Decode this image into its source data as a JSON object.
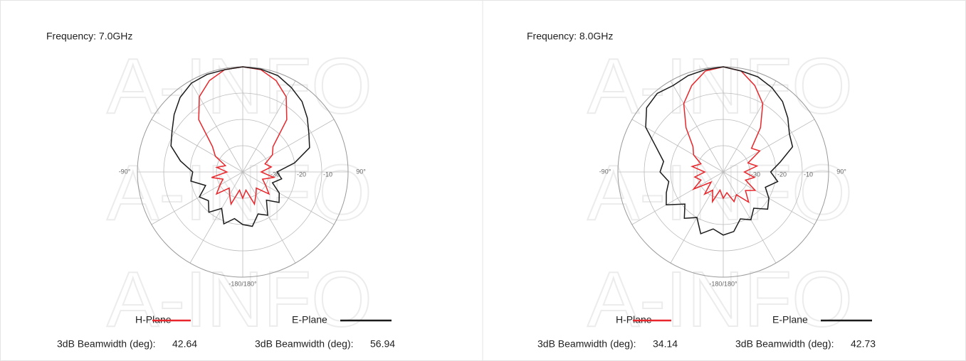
{
  "watermark": "A-INFO",
  "chart_data": [
    {
      "type": "polar",
      "title": "Frequency: 7.0GHz",
      "beamwidth_label": "3dB Beamwidth (deg):",
      "theta": [
        -180,
        -170,
        -160,
        -150,
        -140,
        -130,
        -120,
        -110,
        -100,
        -90,
        -80,
        -70,
        -60,
        -50,
        -40,
        -30,
        -20,
        -10,
        0,
        10,
        20,
        30,
        40,
        50,
        60,
        70,
        80,
        90,
        100,
        110,
        120,
        130,
        140,
        150,
        160,
        170
      ],
      "rlim": [
        -40,
        0
      ],
      "rticks": [
        -30,
        -20,
        -10
      ],
      "thetaticks": [
        {
          "value": -90,
          "label": "-90°"
        },
        {
          "value": 90,
          "label": "90°"
        },
        {
          "value": 180,
          "label": "-180/180°"
        }
      ],
      "series": [
        {
          "name": "H-Plane",
          "color": "#e8262b",
          "beamwidth": 42.64,
          "values": [
            -30,
            -33,
            -27,
            -30,
            -32,
            -27,
            -30,
            -32,
            -28,
            -34,
            -30,
            -33,
            -28,
            -25,
            -14,
            -7,
            -3,
            -0.5,
            0,
            -0.5,
            -3,
            -7,
            -14,
            -25,
            -27,
            -31,
            -29,
            -33,
            -28,
            -32,
            -30,
            -27,
            -32,
            -30,
            -27,
            -33
          ]
        },
        {
          "name": "E-Plane",
          "color": "#1a1a1a",
          "beamwidth": 56.94,
          "values": [
            -20,
            -22,
            -19,
            -24,
            -20,
            -23,
            -21,
            -25,
            -20,
            -21,
            -16,
            -11,
            -9,
            -6,
            -3,
            -1,
            -0.5,
            -0.5,
            0,
            -0.3,
            -1,
            -3,
            -5,
            -8,
            -11,
            -13,
            -20,
            -27,
            -25,
            -28,
            -24,
            -22,
            -26,
            -21,
            -23,
            -19
          ]
        }
      ]
    },
    {
      "type": "polar",
      "title": "Frequency: 8.0GHz",
      "beamwidth_label": "3dB Beamwidth (deg):",
      "theta": [
        -180,
        -170,
        -160,
        -150,
        -140,
        -130,
        -120,
        -110,
        -100,
        -90,
        -80,
        -70,
        -60,
        -50,
        -40,
        -30,
        -20,
        -10,
        0,
        10,
        20,
        30,
        40,
        50,
        60,
        70,
        80,
        90,
        100,
        110,
        120,
        130,
        140,
        150,
        160,
        170
      ],
      "rlim": [
        -40,
        0
      ],
      "rticks": [
        -30,
        -20,
        -10
      ],
      "thetaticks": [
        {
          "value": -90,
          "label": "-90°"
        },
        {
          "value": 90,
          "label": "90°"
        },
        {
          "value": 180,
          "label": "-180/180°"
        }
      ],
      "series": [
        {
          "name": "H-Plane",
          "color": "#e8262b",
          "beamwidth": 34.14,
          "values": [
            -30,
            -33,
            -28,
            -32,
            -29,
            -34,
            -27,
            -31,
            -29,
            -33,
            -28,
            -31,
            -27,
            -25,
            -18,
            -10,
            -5,
            -1,
            0,
            -1,
            -5,
            -10,
            -18,
            -26,
            -24,
            -30,
            -27,
            -32,
            -28,
            -31,
            -26,
            -29,
            -25,
            -30,
            -28,
            -32
          ]
        },
        {
          "name": "E-Plane",
          "color": "#1a1a1a",
          "beamwidth": 42.73,
          "values": [
            -16,
            -18,
            -15,
            -20,
            -17,
            -21,
            -15,
            -17,
            -19,
            -16,
            -17,
            -13,
            -6,
            -2,
            -1,
            -2,
            -1,
            -0.5,
            0,
            -1,
            -1.5,
            -3,
            -5,
            -8,
            -11,
            -12,
            -18,
            -22,
            -19,
            -23,
            -20,
            -18,
            -22,
            -19,
            -21,
            -17
          ]
        }
      ]
    }
  ]
}
